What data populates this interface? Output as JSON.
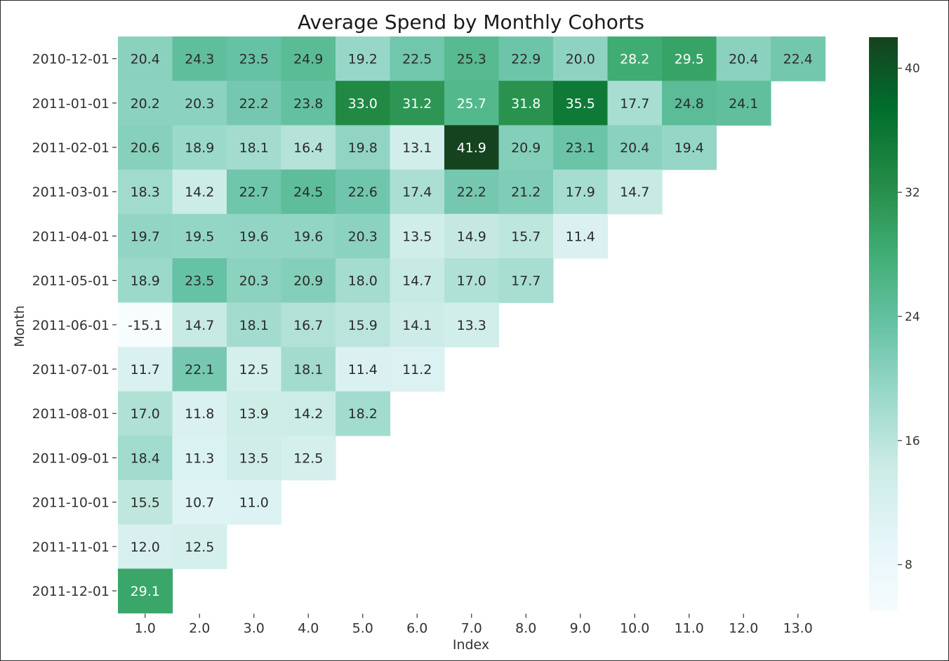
{
  "chart_data": {
    "type": "heatmap",
    "title": "Average Spend by Monthly Cohorts",
    "xlabel": "Index",
    "ylabel": "Month",
    "x": [
      "1.0",
      "2.0",
      "3.0",
      "4.0",
      "5.0",
      "6.0",
      "7.0",
      "8.0",
      "9.0",
      "10.0",
      "11.0",
      "12.0",
      "13.0"
    ],
    "y": [
      "2010-12-01",
      "2011-01-01",
      "2011-02-01",
      "2011-03-01",
      "2011-04-01",
      "2011-05-01",
      "2011-06-01",
      "2011-07-01",
      "2011-08-01",
      "2011-09-01",
      "2011-10-01",
      "2011-11-01",
      "2011-12-01"
    ],
    "values": [
      [
        20.4,
        24.3,
        23.5,
        24.9,
        19.2,
        22.5,
        25.3,
        22.9,
        20.0,
        28.2,
        29.5,
        20.4,
        22.4
      ],
      [
        20.2,
        20.3,
        22.2,
        23.8,
        33.0,
        31.2,
        25.7,
        31.8,
        35.5,
        17.7,
        24.8,
        24.1
      ],
      [
        20.6,
        18.9,
        18.1,
        16.4,
        19.8,
        13.1,
        41.9,
        20.9,
        23.1,
        20.4,
        19.4
      ],
      [
        18.3,
        14.2,
        22.7,
        24.5,
        22.6,
        17.4,
        22.2,
        21.2,
        17.9,
        14.7
      ],
      [
        19.7,
        19.5,
        19.6,
        19.6,
        20.3,
        13.5,
        14.9,
        15.7,
        11.4
      ],
      [
        18.9,
        23.5,
        20.3,
        20.9,
        18.0,
        14.7,
        17.0,
        17.7
      ],
      [
        -15.1,
        14.7,
        18.1,
        16.7,
        15.9,
        14.1,
        13.3
      ],
      [
        11.7,
        22.1,
        12.5,
        18.1,
        11.4,
        11.2
      ],
      [
        17.0,
        11.8,
        13.9,
        14.2,
        18.2
      ],
      [
        18.4,
        11.3,
        13.5,
        12.5
      ],
      [
        15.5,
        10.7,
        11.0
      ],
      [
        12.0,
        12.5
      ],
      [
        29.1
      ]
    ],
    "colormap": "BuGn",
    "colorbar": {
      "ticks": [
        8,
        16,
        24,
        32,
        40
      ],
      "vmin": 5,
      "vmax": 42
    },
    "colors": {
      "low": "#f4fafc",
      "high": "#17421f"
    }
  }
}
